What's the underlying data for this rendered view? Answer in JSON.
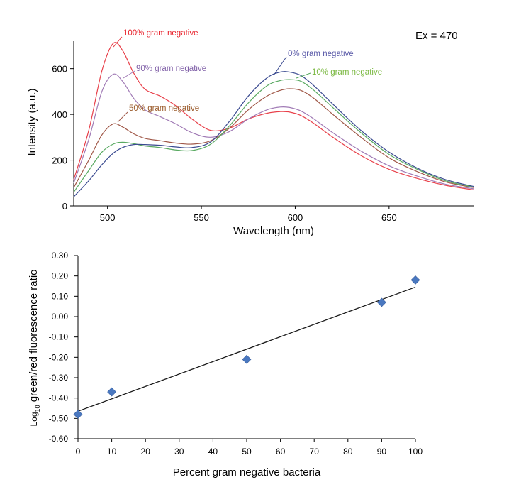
{
  "chart_data": [
    {
      "type": "line",
      "title": "",
      "annotation": "Ex = 470",
      "xlabel": "Wavelength (nm)",
      "ylabel": "Intensity (a.u.)",
      "xlim": [
        482,
        695
      ],
      "ylim": [
        0,
        720
      ],
      "xticks": [
        500,
        550,
        600,
        650
      ],
      "yticks": [
        0,
        200,
        400,
        600
      ],
      "series": [
        {
          "name": "100% gram negative",
          "color": "#e8404a",
          "label_color": "#e8202a",
          "x": [
            482,
            490,
            497,
            503,
            508,
            514,
            520,
            528,
            536,
            545,
            555,
            565,
            575,
            585,
            592,
            597,
            603,
            610,
            620,
            635,
            650,
            665,
            680,
            695
          ],
          "y": [
            115,
            330,
            590,
            710,
            680,
            580,
            510,
            480,
            440,
            380,
            330,
            340,
            380,
            405,
            412,
            410,
            395,
            360,
            300,
            220,
            160,
            120,
            90,
            70
          ]
        },
        {
          "name": "90% gram negative",
          "color": "#a07ab5",
          "label_color": "#8060a8",
          "x": [
            482,
            490,
            497,
            503,
            508,
            514,
            520,
            528,
            536,
            545,
            555,
            565,
            575,
            585,
            592,
            597,
            603,
            610,
            620,
            635,
            650,
            665,
            680,
            695
          ],
          "y": [
            100,
            290,
            500,
            575,
            545,
            470,
            420,
            390,
            360,
            320,
            300,
            325,
            380,
            420,
            432,
            430,
            415,
            380,
            320,
            240,
            175,
            130,
            95,
            75
          ]
        },
        {
          "name": "50% gram negative",
          "color": "#a05848",
          "label_color": "#9a5a2a",
          "x": [
            482,
            490,
            497,
            503,
            508,
            514,
            520,
            528,
            536,
            545,
            555,
            565,
            575,
            585,
            592,
            597,
            603,
            610,
            620,
            635,
            650,
            665,
            680,
            695
          ],
          "y": [
            80,
            200,
            310,
            358,
            345,
            315,
            295,
            285,
            275,
            270,
            285,
            340,
            420,
            480,
            505,
            512,
            505,
            470,
            400,
            300,
            210,
            150,
            105,
            80
          ]
        },
        {
          "name": "10% gram negative",
          "color": "#5aaa62",
          "label_color": "#7ab840",
          "x": [
            482,
            490,
            497,
            503,
            508,
            514,
            520,
            528,
            536,
            545,
            555,
            565,
            575,
            585,
            592,
            597,
            603,
            610,
            620,
            635,
            650,
            665,
            680,
            695
          ],
          "y": [
            60,
            155,
            235,
            270,
            278,
            272,
            262,
            255,
            245,
            242,
            270,
            350,
            450,
            525,
            548,
            552,
            545,
            505,
            430,
            320,
            225,
            160,
            110,
            82
          ]
        },
        {
          "name": "0% gram negative",
          "color": "#3a4a90",
          "label_color": "#5a5aa8",
          "x": [
            482,
            490,
            497,
            503,
            508,
            514,
            520,
            528,
            536,
            545,
            555,
            565,
            575,
            585,
            592,
            597,
            603,
            610,
            620,
            635,
            650,
            665,
            680,
            695
          ],
          "y": [
            40,
            110,
            180,
            230,
            255,
            268,
            268,
            265,
            258,
            255,
            280,
            370,
            480,
            560,
            585,
            585,
            570,
            525,
            445,
            330,
            235,
            165,
            115,
            85
          ]
        }
      ]
    },
    {
      "type": "scatter",
      "title": "",
      "xlabel": "Percent gram negative bacteria",
      "ylabel_prefix": "Log",
      "ylabel_sub": "10",
      "ylabel_main": " green/red fluorescence ratio",
      "xlim": [
        0,
        100
      ],
      "ylim": [
        -0.6,
        0.3
      ],
      "xticks": [
        "0",
        "10",
        "20",
        "30",
        "40",
        "50",
        "60",
        "70",
        "80",
        "90",
        "100"
      ],
      "yticks": [
        "0.30",
        "0.20",
        "0.10",
        "0.00",
        "-0.10",
        "-0.20",
        "-0.30",
        "-0.40",
        "-0.50",
        "-0.60"
      ],
      "marker_color": "#4a78c0",
      "x": [
        0,
        10,
        50,
        90,
        100
      ],
      "y": [
        -0.48,
        -0.37,
        -0.21,
        0.07,
        0.18
      ],
      "trendline": {
        "x": [
          0,
          100
        ],
        "y": [
          -0.465,
          0.145
        ]
      }
    }
  ]
}
